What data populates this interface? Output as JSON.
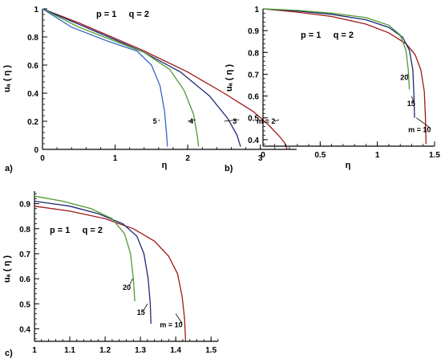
{
  "chart_data": [
    {
      "type": "line",
      "panel": "a)",
      "annotation": "p = 1     q = 2",
      "xlabel": "η",
      "ylabel": "uₐ ( η )",
      "xlim": [
        0,
        3.5
      ],
      "ylim": [
        0,
        1
      ],
      "xticks": [
        "0",
        "1",
        "2",
        "3"
      ],
      "xtick_values": [
        0,
        1,
        2,
        3
      ],
      "yticks": [
        "0",
        "0.2",
        "0.4",
        "0.6",
        "0.8",
        "1"
      ],
      "ytick_values": [
        0,
        0.2,
        0.4,
        0.6,
        0.8,
        1
      ],
      "grid": false,
      "series": [
        {
          "label": "m = 2",
          "color": "#a01818",
          "x": [
            0,
            0.5,
            1.0,
            1.4,
            2.0,
            2.5,
            2.9,
            3.1,
            3.25,
            3.33,
            3.37
          ],
          "y": [
            1.0,
            0.9,
            0.79,
            0.7,
            0.55,
            0.4,
            0.27,
            0.18,
            0.1,
            0.05,
            0.0
          ],
          "label_x": 2.95,
          "label_y": 0.2,
          "tip_x": 3.2,
          "tip_y": 0.2
        },
        {
          "label": "3",
          "color": "#1f2a78",
          "x": [
            0,
            0.5,
            1.0,
            1.4,
            1.9,
            2.3,
            2.55,
            2.68,
            2.72,
            2.73
          ],
          "y": [
            1.0,
            0.89,
            0.78,
            0.69,
            0.55,
            0.38,
            0.22,
            0.1,
            0.03,
            0.02
          ],
          "label_x": 2.62,
          "label_y": 0.2,
          "tip_x": 2.5,
          "tip_y": 0.2
        },
        {
          "label": "4",
          "color": "#4f9a2e",
          "x": [
            0,
            0.5,
            1.0,
            1.4,
            1.75,
            1.95,
            2.08,
            2.13,
            2.15
          ],
          "y": [
            1.0,
            0.87,
            0.77,
            0.69,
            0.57,
            0.42,
            0.25,
            0.1,
            0.02
          ],
          "label_x": 2.02,
          "label_y": 0.2,
          "tip_x": 2.0,
          "tip_y": 0.2
        },
        {
          "label": "5",
          "color": "#3268c2",
          "x": [
            0,
            0.4,
            0.9,
            1.3,
            1.5,
            1.62,
            1.68,
            1.71,
            1.72
          ],
          "y": [
            1.0,
            0.87,
            0.77,
            0.7,
            0.6,
            0.45,
            0.27,
            0.1,
            0.02
          ],
          "label_x": 1.52,
          "label_y": 0.2,
          "tip_x": 1.6,
          "tip_y": 0.2
        }
      ]
    },
    {
      "type": "line",
      "panel": "b)",
      "annotation": "p = 1     q = 2",
      "xlabel": "η",
      "ylabel": "uₐ ( η )",
      "xlim": [
        0,
        1.5
      ],
      "ylim": [
        0.37,
        1
      ],
      "xticks": [
        "0",
        "0.5",
        "1",
        "1.5"
      ],
      "xtick_values": [
        0,
        0.5,
        1,
        1.5
      ],
      "yticks": [
        "0.4",
        "0.5",
        "0.6",
        "0.7",
        "0.8",
        "0.9",
        "1"
      ],
      "ytick_values": [
        0.4,
        0.5,
        0.6,
        0.7,
        0.8,
        0.9,
        1
      ],
      "grid": false,
      "series": [
        {
          "label": "m = 10",
          "color": "#a01818",
          "x": [
            0,
            0.3,
            0.6,
            0.9,
            1.1,
            1.25,
            1.33,
            1.38,
            1.41,
            1.42,
            1.425
          ],
          "y": [
            1.0,
            0.985,
            0.965,
            0.93,
            0.89,
            0.84,
            0.79,
            0.72,
            0.62,
            0.5,
            0.38
          ],
          "label_x": 1.27,
          "label_y": 0.445,
          "tip_x": 1.34,
          "tip_y": 0.5
        },
        {
          "label": "15",
          "color": "#1f2a78",
          "x": [
            0,
            0.3,
            0.6,
            0.9,
            1.1,
            1.22,
            1.28,
            1.31,
            1.32,
            1.325
          ],
          "y": [
            1.0,
            0.99,
            0.975,
            0.95,
            0.915,
            0.87,
            0.81,
            0.72,
            0.6,
            0.5
          ],
          "label_x": 1.26,
          "label_y": 0.565,
          "tip_x": 1.3,
          "tip_y": 0.6
        },
        {
          "label": "20",
          "color": "#4f9a2e",
          "x": [
            0,
            0.3,
            0.6,
            0.9,
            1.1,
            1.2,
            1.25,
            1.27,
            1.28
          ],
          "y": [
            1.0,
            0.993,
            0.98,
            0.96,
            0.925,
            0.88,
            0.81,
            0.72,
            0.63
          ],
          "label_x": 1.2,
          "label_y": 0.685,
          "tip_x": 1.27,
          "tip_y": 0.7
        }
      ]
    },
    {
      "type": "line",
      "panel": "c)",
      "annotation": "p = 1     q = 2",
      "xlabel": "",
      "ylabel": "uₐ ( η )",
      "xlim": [
        1.0,
        1.52
      ],
      "ylim": [
        0.35,
        0.95
      ],
      "xticks": [
        "1",
        "1.1",
        "1.2",
        "1.3",
        "1.4",
        "1.5"
      ],
      "xtick_values": [
        1.0,
        1.1,
        1.2,
        1.3,
        1.4,
        1.5
      ],
      "yticks": [
        "0.4",
        "0.5",
        "0.6",
        "0.7",
        "0.8",
        "0.9"
      ],
      "ytick_values": [
        0.4,
        0.5,
        0.6,
        0.7,
        0.8,
        0.9
      ],
      "grid": false,
      "series": [
        {
          "label": "m = 10",
          "color": "#a01818",
          "x": [
            1.0,
            1.1,
            1.2,
            1.28,
            1.34,
            1.38,
            1.405,
            1.418,
            1.425,
            1.428
          ],
          "y": [
            0.89,
            0.87,
            0.84,
            0.8,
            0.75,
            0.69,
            0.62,
            0.53,
            0.44,
            0.35
          ],
          "label_x": 1.355,
          "label_y": 0.415,
          "tip_x": 1.4,
          "tip_y": 0.46
        },
        {
          "label": "15",
          "color": "#1f2a78",
          "x": [
            1.0,
            1.1,
            1.18,
            1.25,
            1.29,
            1.31,
            1.322,
            1.328,
            1.33
          ],
          "y": [
            0.91,
            0.89,
            0.86,
            0.82,
            0.77,
            0.7,
            0.6,
            0.5,
            0.42
          ],
          "label_x": 1.29,
          "label_y": 0.465,
          "tip_x": 1.32,
          "tip_y": 0.5
        },
        {
          "label": "20",
          "color": "#4f9a2e",
          "x": [
            1.0,
            1.08,
            1.16,
            1.22,
            1.255,
            1.272,
            1.28,
            1.284
          ],
          "y": [
            0.93,
            0.91,
            0.88,
            0.84,
            0.78,
            0.7,
            0.6,
            0.51
          ],
          "label_x": 1.25,
          "label_y": 0.565,
          "tip_x": 1.278,
          "tip_y": 0.6
        }
      ]
    }
  ]
}
